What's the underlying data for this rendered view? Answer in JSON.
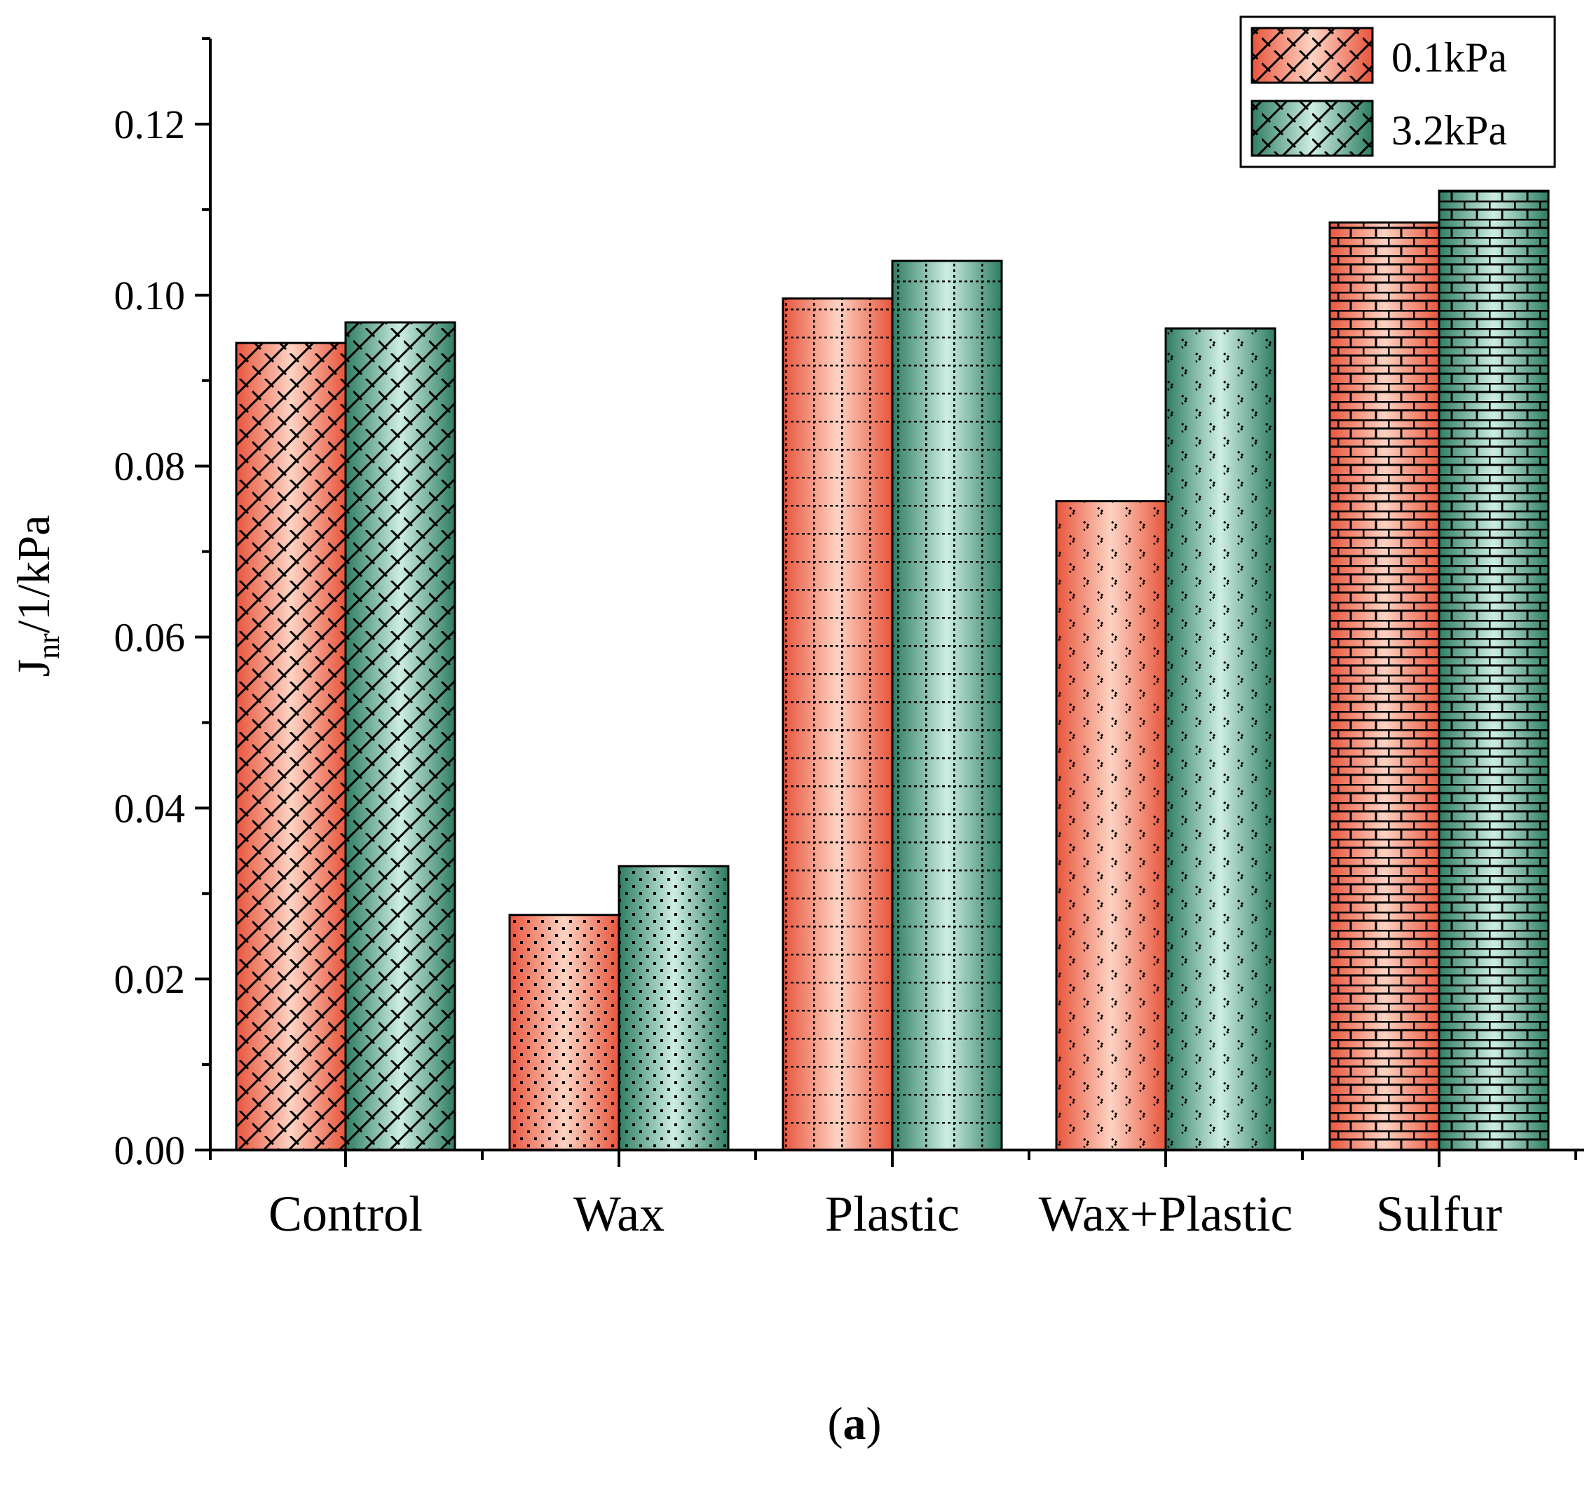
{
  "chart_data": {
    "type": "bar",
    "title": "",
    "panel_label": {
      "open": "(",
      "letter": "a",
      "close": ")"
    },
    "xlabel": "",
    "ylabel": {
      "main": "J",
      "sub": "nr",
      "rest": "/1/kPa"
    },
    "ylim": [
      0,
      0.13
    ],
    "yticks": [
      "0.00",
      "0.02",
      "0.04",
      "0.06",
      "0.08",
      "0.10",
      "0.12"
    ],
    "ytick_values": [
      0,
      0.02,
      0.04,
      0.06,
      0.08,
      0.1,
      0.12
    ],
    "categories": [
      "Control",
      "Wax",
      "Plastic",
      "Wax+Plastic",
      "Sulfur"
    ],
    "patterns": [
      "diamond",
      "dots",
      "grid",
      "chevron",
      "brick"
    ],
    "series": [
      {
        "name": "0.1kPa",
        "values": [
          0.0944,
          0.0275,
          0.0996,
          0.0759,
          0.1085
        ]
      },
      {
        "name": "3.2kPa",
        "values": [
          0.0968,
          0.0332,
          0.104,
          0.0961,
          0.1122
        ]
      }
    ],
    "legend_position": "top-right",
    "colors": {
      "s0_dark": "#e8553c",
      "s0_light": "#fdd3c3",
      "s1_dark": "#2e7d62",
      "s1_light": "#cdeee2",
      "axis": "#000000"
    }
  }
}
